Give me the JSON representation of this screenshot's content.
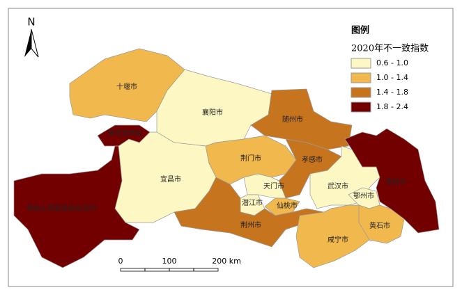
{
  "north": "N",
  "legend": {
    "title": "图例",
    "heading": "2020年不一致指数",
    "classes": [
      {
        "label": "0.6 - 1.0",
        "color": "#fdf7c3"
      },
      {
        "label": "1.0 - 1.4",
        "color": "#f1b84d"
      },
      {
        "label": "1.4 - 1.8",
        "color": "#c7741f"
      },
      {
        "label": "1.8 - 2.4",
        "color": "#730000"
      }
    ]
  },
  "scale": {
    "labels": [
      "0",
      "100",
      "200 km"
    ]
  },
  "regions": [
    {
      "name": "十堰市",
      "class": 1
    },
    {
      "name": "襄阳市",
      "class": 0
    },
    {
      "name": "随州市",
      "class": 2
    },
    {
      "name": "神农架林区",
      "class": 3
    },
    {
      "name": "荆门市",
      "class": 1
    },
    {
      "name": "孝感市",
      "class": 2
    },
    {
      "name": "宜昌市",
      "class": 0
    },
    {
      "name": "恩施土家族苗族自治州",
      "class": 3
    },
    {
      "name": "天门市",
      "class": 0
    },
    {
      "name": "潜江市",
      "class": 0
    },
    {
      "name": "仙桃市",
      "class": 1
    },
    {
      "name": "荆州市",
      "class": 2
    },
    {
      "name": "武汉市",
      "class": 0
    },
    {
      "name": "鄂州市",
      "class": 0
    },
    {
      "name": "黄冈市",
      "class": 3
    },
    {
      "name": "黄石市",
      "class": 1
    },
    {
      "name": "咸宁市",
      "class": 1
    }
  ]
}
